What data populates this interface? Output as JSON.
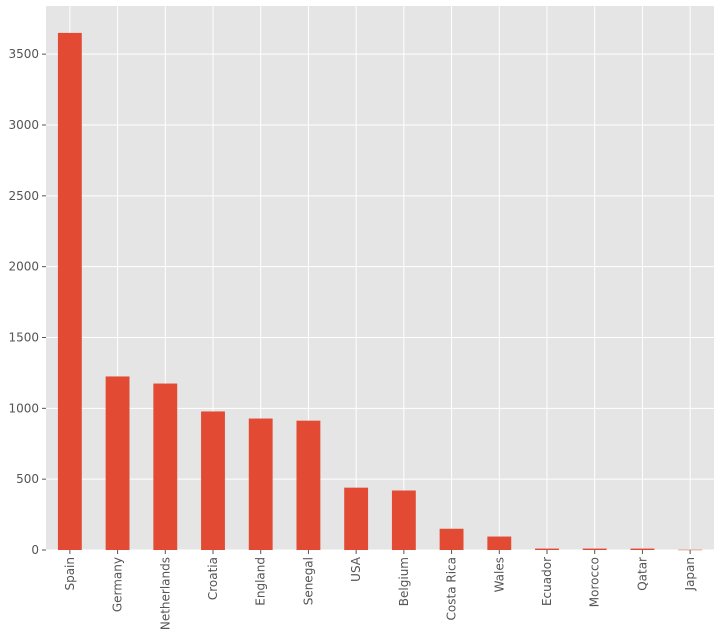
{
  "chart_data": {
    "type": "bar",
    "title": "",
    "xlabel": "",
    "ylabel": "",
    "categories": [
      "Spain",
      "Germany",
      "Netherlands",
      "Croatia",
      "England",
      "Senegal",
      "USA",
      "Belgium",
      "Costa Rica",
      "Wales",
      "Ecuador",
      "Morocco",
      "Qatar",
      "Japan"
    ],
    "values": [
      3650,
      1225,
      1175,
      978,
      928,
      913,
      440,
      420,
      150,
      95,
      10,
      10,
      10,
      2
    ],
    "ylim": [
      0,
      3840
    ],
    "yticks": [
      0,
      500,
      1000,
      1500,
      2000,
      2500,
      3000,
      3500
    ],
    "grid": true,
    "colors": {
      "bar": "#e24a33",
      "background": "#e5e5e5",
      "grid": "#ffffff",
      "tick_text": "#555555"
    }
  }
}
